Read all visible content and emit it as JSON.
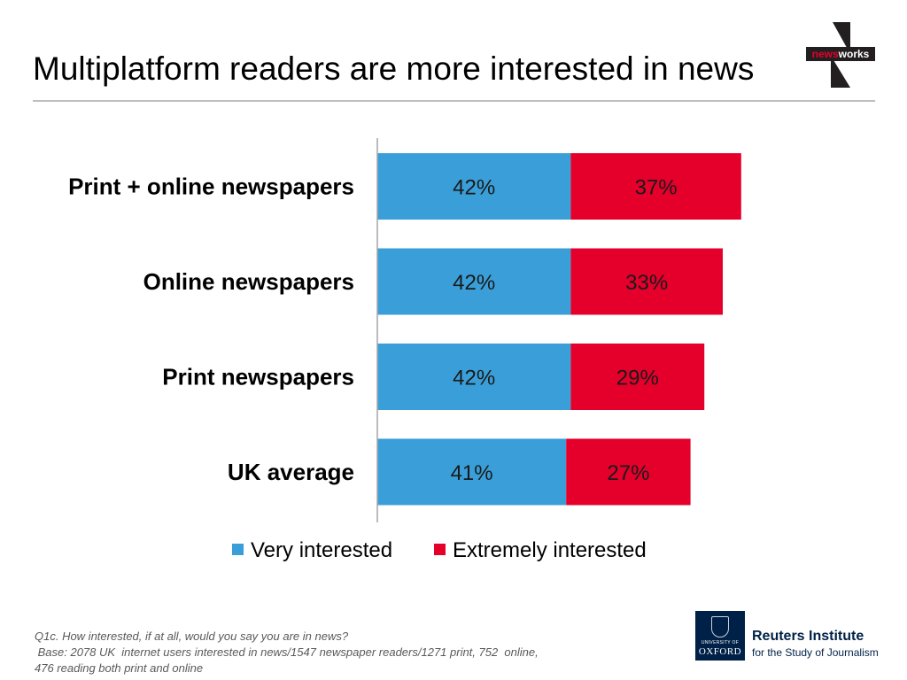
{
  "header": {
    "title": "Multiplatform readers are more interested in news"
  },
  "logo_newsworks": {
    "text_part1": "news",
    "text_part2": "works",
    "icon": "newsworks-n-logo"
  },
  "chart_data": {
    "type": "bar",
    "orientation": "horizontal",
    "stacked": true,
    "categories": [
      "Print + online newspapers",
      "Online newspapers",
      "Print newspapers",
      "UK average"
    ],
    "series": [
      {
        "name": "Very interested",
        "values": [
          42,
          42,
          42,
          41
        ],
        "labels": [
          "42%",
          "42%",
          "42%",
          "41%"
        ],
        "color": "#3a9fd8"
      },
      {
        "name": "Extremely interested",
        "values": [
          37,
          33,
          29,
          27
        ],
        "labels": [
          "37%",
          "33%",
          "29%",
          "27%"
        ],
        "color": "#e4002b"
      }
    ],
    "xlim": [
      0,
      100
    ],
    "legend": "bottom",
    "grid": false
  },
  "footnote": {
    "line1": "Q1c. How interested, if at all, would you say you are in news?",
    "line2": " Base: 2078 UK  internet users interested in news/1547 newspaper readers/1271 print, 752  online,",
    "line3": "476 reading both print and online"
  },
  "logo_oxford": {
    "line1": "UNIVERSITY OF",
    "line2": "OXFORD",
    "icon": "oxford-crest-icon"
  },
  "logo_reuters": {
    "line1": "Reuters Institute",
    "line2": "for the Study of Journalism"
  }
}
